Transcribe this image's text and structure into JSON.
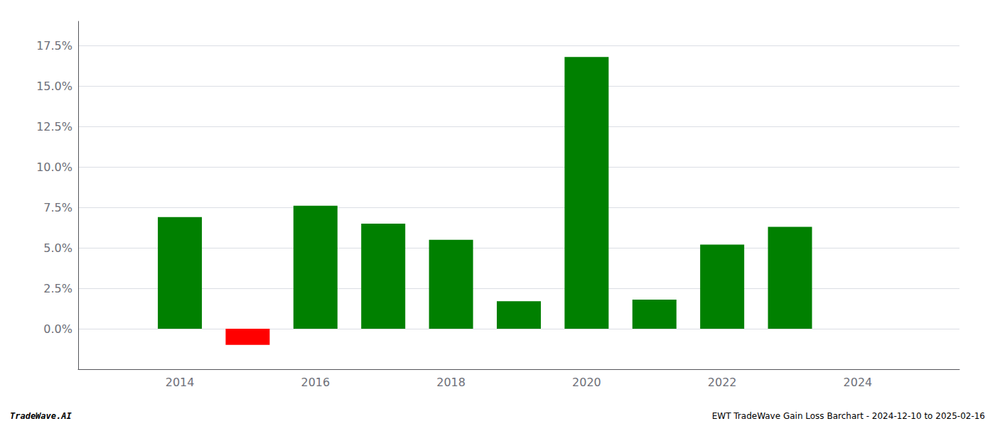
{
  "chart_data": {
    "type": "bar",
    "x": [
      2014,
      2015,
      2016,
      2017,
      2018,
      2019,
      2020,
      2021,
      2022,
      2023
    ],
    "values": [
      0.069,
      -0.01,
      0.076,
      0.065,
      0.055,
      0.017,
      0.168,
      0.018,
      0.052,
      0.063
    ],
    "colors": [
      "#008000",
      "#ff0000",
      "#008000",
      "#008000",
      "#008000",
      "#008000",
      "#008000",
      "#008000",
      "#008000",
      "#008000"
    ],
    "xlim": [
      2012.5,
      2025.5
    ],
    "xticks": [
      2014,
      2016,
      2018,
      2020,
      2022,
      2024
    ],
    "ylim": [
      -0.025,
      0.19
    ],
    "yticks": [
      {
        "value": 0.0,
        "label": "0.0%"
      },
      {
        "value": 0.025,
        "label": "2.5%"
      },
      {
        "value": 0.05,
        "label": "5.0%"
      },
      {
        "value": 0.075,
        "label": "7.5%"
      },
      {
        "value": 0.1,
        "label": "10.0%"
      },
      {
        "value": 0.125,
        "label": "12.5%"
      },
      {
        "value": 0.15,
        "label": "15.0%"
      },
      {
        "value": 0.175,
        "label": "17.5%"
      }
    ],
    "grid": true,
    "annotations": [
      "TradeWave.AI",
      "EWT TradeWave Gain Loss Barchart - 2024-12-10 to 2025-02-16"
    ]
  }
}
